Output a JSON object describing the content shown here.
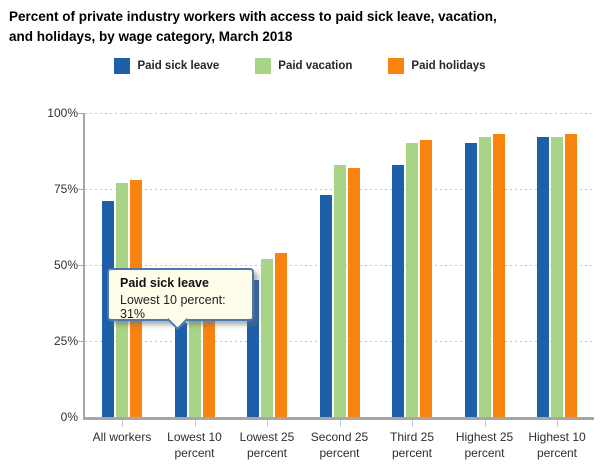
{
  "title": {
    "line1": "Percent of private industry workers with access to paid sick leave, vacation,",
    "line2": "and holidays, by wage category, March 2018"
  },
  "tooltip": {
    "series": "Paid sick leave",
    "text": "Lowest 10 percent: 31%"
  },
  "chart_data": {
    "type": "bar",
    "title": "Percent of private industry workers with access to paid sick leave, vacation, and holidays, by wage category, March 2018",
    "categories": [
      "All workers",
      "Lowest 10 percent",
      "Lowest 25 percent",
      "Second 25 percent",
      "Third 25 percent",
      "Highest 25 percent",
      "Highest 10 percent"
    ],
    "series": [
      {
        "name": "Paid sick leave",
        "color": "#1e5fa9",
        "values": [
          71,
          31,
          45,
          73,
          83,
          90,
          92
        ]
      },
      {
        "name": "Paid vacation",
        "color": "#a9d487",
        "values": [
          77,
          40,
          52,
          83,
          90,
          92,
          92
        ]
      },
      {
        "name": "Paid holidays",
        "color": "#f9830f",
        "values": [
          78,
          45,
          54,
          82,
          91,
          93,
          93
        ]
      }
    ],
    "xlabel": "",
    "ylabel": "",
    "ylim": [
      0,
      100
    ],
    "yticks": [
      0,
      25,
      50,
      75,
      100
    ],
    "ytick_labels": [
      "0%",
      "25%",
      "50%",
      "75%",
      "100%"
    ],
    "grid": "horizontal-dotted",
    "legend_position": "top",
    "annotation": "Tooltip shown for Paid sick leave, Lowest 10 percent: 31%; it hides the tops of the Paid vacation and Paid holidays bars of the Lowest 10 percent group"
  },
  "colors": {
    "axis": "#a6a6a6",
    "grid": "#c6c6c6",
    "xtick": "#b7cde2",
    "tooltip_bg": "#fdfdea",
    "tooltip_border": "#4a79b2"
  }
}
